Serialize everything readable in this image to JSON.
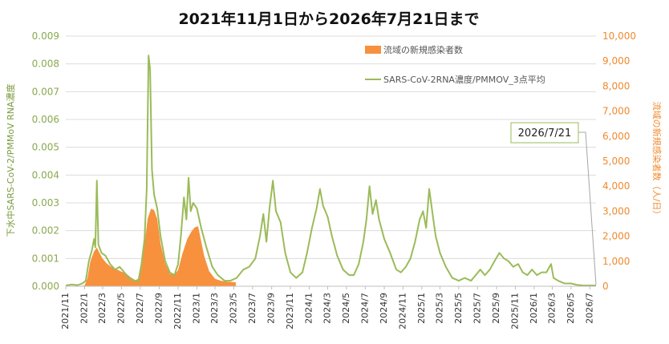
{
  "chart_data": {
    "type": "area",
    "title": "2021年11月1日から2026年7月21日まで",
    "ylabel_left": "下水中SARS-CoV-2/PMMoV RNA濃度",
    "ylabel_right": "流域の新規感染者数（人/日）",
    "y_left_range": [
      0,
      0.009
    ],
    "y_left_ticks": [
      "0.000",
      "0.001",
      "0.002",
      "0.003",
      "0.004",
      "0.005",
      "0.006",
      "0.007",
      "0.008",
      "0.009"
    ],
    "y_right_range": [
      0,
      10000
    ],
    "y_right_ticks": [
      "0",
      "1,000",
      "2,000",
      "3,000",
      "4,000",
      "5,000",
      "6,000",
      "7,000",
      "8,000",
      "9,000",
      "10,000"
    ],
    "x_range": [
      "2021-11-01",
      "2026-07-21"
    ],
    "x_ticks": [
      "2021/11",
      "2022/1",
      "2022/3",
      "2022/5",
      "2022/7",
      "2022/9",
      "2022/11",
      "2023/1",
      "2023/3",
      "2023/5",
      "2023/7",
      "2023/9",
      "2023/11",
      "2024/1",
      "2024/3",
      "2024/5",
      "2024/7",
      "2024/9",
      "2024/11",
      "2025/1",
      "2025/3",
      "2025/5",
      "2025/7",
      "2025/9",
      "2025/11",
      "2026/1",
      "2026/3",
      "2026/5",
      "2026/7"
    ],
    "grid": "horizontal",
    "legend_position": "top-right",
    "series": [
      {
        "name": "流域の新規感染者数",
        "type": "area",
        "axis": "right",
        "color": "#f7913d",
        "points": [
          [
            "2021-11-01",
            0
          ],
          [
            "2021-12-15",
            0
          ],
          [
            "2022-01-01",
            30
          ],
          [
            "2022-01-10",
            300
          ],
          [
            "2022-01-20",
            1000
          ],
          [
            "2022-02-01",
            1400
          ],
          [
            "2022-02-10",
            1550
          ],
          [
            "2022-02-20",
            1300
          ],
          [
            "2022-03-01",
            1100
          ],
          [
            "2022-03-15",
            900
          ],
          [
            "2022-04-01",
            750
          ],
          [
            "2022-04-15",
            680
          ],
          [
            "2022-05-01",
            580
          ],
          [
            "2022-05-15",
            520
          ],
          [
            "2022-06-01",
            350
          ],
          [
            "2022-06-15",
            250
          ],
          [
            "2022-06-25",
            300
          ],
          [
            "2022-07-05",
            700
          ],
          [
            "2022-07-15",
            1700
          ],
          [
            "2022-07-25",
            2700
          ],
          [
            "2022-08-05",
            3100
          ],
          [
            "2022-08-15",
            3050
          ],
          [
            "2022-08-25",
            2700
          ],
          [
            "2022-09-05",
            1700
          ],
          [
            "2022-09-20",
            900
          ],
          [
            "2022-10-05",
            500
          ],
          [
            "2022-10-20",
            450
          ],
          [
            "2022-11-01",
            650
          ],
          [
            "2022-11-15",
            1300
          ],
          [
            "2022-12-01",
            1900
          ],
          [
            "2022-12-15",
            2200
          ],
          [
            "2022-12-25",
            2350
          ],
          [
            "2023-01-05",
            2400
          ],
          [
            "2023-01-15",
            1800
          ],
          [
            "2023-01-25",
            1200
          ],
          [
            "2023-02-10",
            600
          ],
          [
            "2023-03-01",
            300
          ],
          [
            "2023-03-20",
            220
          ],
          [
            "2023-04-10",
            180
          ],
          [
            "2023-04-30",
            170
          ],
          [
            "2023-05-07",
            160
          ],
          [
            "2023-05-08",
            0
          ],
          [
            "2026-07-21",
            0
          ]
        ]
      },
      {
        "name": "SARS-CoV-2RNA濃度/PMMOV_3点平均",
        "type": "line",
        "axis": "left",
        "color": "#9bbb59",
        "points": [
          [
            "2021-11-01",
            3e-05
          ],
          [
            "2021-11-20",
            6e-05
          ],
          [
            "2021-12-10",
            4e-05
          ],
          [
            "2021-12-25",
            0.0001
          ],
          [
            "2022-01-05",
            0.0002
          ],
          [
            "2022-01-15",
            0.0009
          ],
          [
            "2022-01-25",
            0.0013
          ],
          [
            "2022-02-01",
            0.0017
          ],
          [
            "2022-02-05",
            0.0014
          ],
          [
            "2022-02-10",
            0.0038
          ],
          [
            "2022-02-15",
            0.0015
          ],
          [
            "2022-02-25",
            0.0012
          ],
          [
            "2022-03-10",
            0.0011
          ],
          [
            "2022-03-25",
            0.0008
          ],
          [
            "2022-04-10",
            0.0006
          ],
          [
            "2022-04-25",
            0.0007
          ],
          [
            "2022-05-10",
            0.0005
          ],
          [
            "2022-05-25",
            0.0003
          ],
          [
            "2022-06-10",
            0.0002
          ],
          [
            "2022-06-25",
            0.0002
          ],
          [
            "2022-07-05",
            0.0008
          ],
          [
            "2022-07-15",
            0.0017
          ],
          [
            "2022-07-22",
            0.0035
          ],
          [
            "2022-07-28",
            0.0083
          ],
          [
            "2022-08-02",
            0.0078
          ],
          [
            "2022-08-08",
            0.0042
          ],
          [
            "2022-08-15",
            0.0033
          ],
          [
            "2022-08-25",
            0.0028
          ],
          [
            "2022-09-05",
            0.0018
          ],
          [
            "2022-09-20",
            0.0009
          ],
          [
            "2022-10-05",
            0.0005
          ],
          [
            "2022-10-20",
            0.0004
          ],
          [
            "2022-11-01",
            0.0008
          ],
          [
            "2022-11-10",
            0.0018
          ],
          [
            "2022-11-20",
            0.0032
          ],
          [
            "2022-11-28",
            0.0024
          ],
          [
            "2022-12-05",
            0.0039
          ],
          [
            "2022-12-12",
            0.0027
          ],
          [
            "2022-12-20",
            0.003
          ],
          [
            "2023-01-01",
            0.0028
          ],
          [
            "2023-01-15",
            0.0021
          ],
          [
            "2023-02-01",
            0.0014
          ],
          [
            "2023-02-20",
            0.0007
          ],
          [
            "2023-03-10",
            0.0004
          ],
          [
            "2023-04-01",
            0.0002
          ],
          [
            "2023-04-20",
            0.0002
          ],
          [
            "2023-05-10",
            0.0003
          ],
          [
            "2023-06-01",
            0.0006
          ],
          [
            "2023-06-20",
            0.0007
          ],
          [
            "2023-07-10",
            0.001
          ],
          [
            "2023-07-25",
            0.0018
          ],
          [
            "2023-08-05",
            0.0026
          ],
          [
            "2023-08-15",
            0.0016
          ],
          [
            "2023-08-25",
            0.0028
          ],
          [
            "2023-09-05",
            0.0038
          ],
          [
            "2023-09-15",
            0.0027
          ],
          [
            "2023-09-30",
            0.0023
          ],
          [
            "2023-10-15",
            0.0012
          ],
          [
            "2023-11-01",
            0.0005
          ],
          [
            "2023-11-20",
            0.0003
          ],
          [
            "2023-12-10",
            0.0005
          ],
          [
            "2023-12-25",
            0.0012
          ],
          [
            "2024-01-10",
            0.0021
          ],
          [
            "2024-01-25",
            0.0028
          ],
          [
            "2024-02-05",
            0.0035
          ],
          [
            "2024-02-15",
            0.0029
          ],
          [
            "2024-03-01",
            0.0025
          ],
          [
            "2024-03-15",
            0.0018
          ],
          [
            "2024-04-01",
            0.0011
          ],
          [
            "2024-04-20",
            0.0006
          ],
          [
            "2024-05-10",
            0.0004
          ],
          [
            "2024-05-25",
            0.0004
          ],
          [
            "2024-06-10",
            0.0008
          ],
          [
            "2024-06-25",
            0.0016
          ],
          [
            "2024-07-05",
            0.0024
          ],
          [
            "2024-07-15",
            0.0036
          ],
          [
            "2024-07-25",
            0.0026
          ],
          [
            "2024-08-05",
            0.0031
          ],
          [
            "2024-08-15",
            0.0024
          ],
          [
            "2024-09-01",
            0.0017
          ],
          [
            "2024-09-20",
            0.0012
          ],
          [
            "2024-10-10",
            0.0006
          ],
          [
            "2024-10-25",
            0.0005
          ],
          [
            "2024-11-10",
            0.0007
          ],
          [
            "2024-11-25",
            0.001
          ],
          [
            "2024-12-10",
            0.0016
          ],
          [
            "2024-12-25",
            0.0024
          ],
          [
            "2025-01-05",
            0.0027
          ],
          [
            "2025-01-15",
            0.0021
          ],
          [
            "2025-01-25",
            0.0035
          ],
          [
            "2025-02-05",
            0.0026
          ],
          [
            "2025-02-15",
            0.0018
          ],
          [
            "2025-03-01",
            0.0012
          ],
          [
            "2025-03-20",
            0.0007
          ],
          [
            "2025-04-10",
            0.0003
          ],
          [
            "2025-05-01",
            0.0002
          ],
          [
            "2025-05-20",
            0.0003
          ],
          [
            "2025-06-10",
            0.0002
          ],
          [
            "2025-06-25",
            0.0004
          ],
          [
            "2025-07-10",
            0.0006
          ],
          [
            "2025-07-25",
            0.0004
          ],
          [
            "2025-08-10",
            0.0006
          ],
          [
            "2025-08-25",
            0.0009
          ],
          [
            "2025-09-10",
            0.0012
          ],
          [
            "2025-09-25",
            0.001
          ],
          [
            "2025-10-10",
            0.0009
          ],
          [
            "2025-10-25",
            0.0007
          ],
          [
            "2025-11-10",
            0.0008
          ],
          [
            "2025-11-25",
            0.0005
          ],
          [
            "2025-12-10",
            0.0004
          ],
          [
            "2025-12-25",
            0.0006
          ],
          [
            "2026-01-10",
            0.0004
          ],
          [
            "2026-01-25",
            0.0005
          ],
          [
            "2026-02-10",
            0.0005
          ],
          [
            "2026-02-25",
            0.0008
          ],
          [
            "2026-03-05",
            0.0003
          ],
          [
            "2026-03-20",
            0.0002
          ],
          [
            "2026-04-10",
            0.0001
          ],
          [
            "2026-05-01",
            0.0001
          ],
          [
            "2026-05-20",
            5e-05
          ],
          [
            "2026-06-10",
            3e-05
          ],
          [
            "2026-07-21",
            3e-05
          ]
        ]
      }
    ],
    "annotation": {
      "text": "2026/7/21",
      "x": "2026-07-21"
    }
  }
}
